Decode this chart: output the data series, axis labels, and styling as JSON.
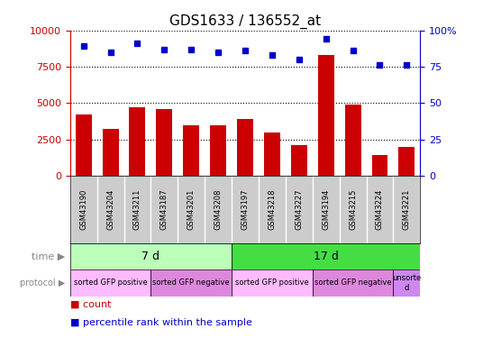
{
  "title": "GDS1633 / 136552_at",
  "samples": [
    "GSM43190",
    "GSM43204",
    "GSM43211",
    "GSM43187",
    "GSM43201",
    "GSM43208",
    "GSM43197",
    "GSM43218",
    "GSM43227",
    "GSM43194",
    "GSM43215",
    "GSM43224",
    "GSM43221"
  ],
  "counts": [
    4200,
    3200,
    4700,
    4600,
    3500,
    3500,
    3900,
    3000,
    2100,
    8300,
    4900,
    1400,
    2000
  ],
  "percentile": [
    89,
    85,
    91,
    87,
    87,
    85,
    86,
    83,
    80,
    94,
    86,
    76,
    76
  ],
  "ylim_left": [
    0,
    10000
  ],
  "ylim_right": [
    0,
    100
  ],
  "yticks_left": [
    0,
    2500,
    5000,
    7500,
    10000
  ],
  "yticks_right": [
    0,
    25,
    50,
    75,
    100
  ],
  "bar_color": "#cc0000",
  "dot_color": "#0000cc",
  "time_groups": [
    {
      "label": "7 d",
      "start": 0,
      "end": 5,
      "color": "#bbffbb"
    },
    {
      "label": "17 d",
      "start": 6,
      "end": 12,
      "color": "#44dd44"
    }
  ],
  "protocol_groups": [
    {
      "label": "sorted GFP positive",
      "start": 0,
      "end": 2,
      "color": "#ffbbff"
    },
    {
      "label": "sorted GFP negative",
      "start": 3,
      "end": 5,
      "color": "#dd88dd"
    },
    {
      "label": "sorted GFP positive",
      "start": 6,
      "end": 8,
      "color": "#ffbbff"
    },
    {
      "label": "sorted GFP negative",
      "start": 9,
      "end": 11,
      "color": "#dd88dd"
    },
    {
      "label": "unsorte\nd",
      "start": 12,
      "end": 12,
      "color": "#cc88ee"
    }
  ],
  "bg_color": "#ffffff",
  "label_bg": "#cccccc",
  "time_label": "time",
  "protocol_label": "protocol"
}
